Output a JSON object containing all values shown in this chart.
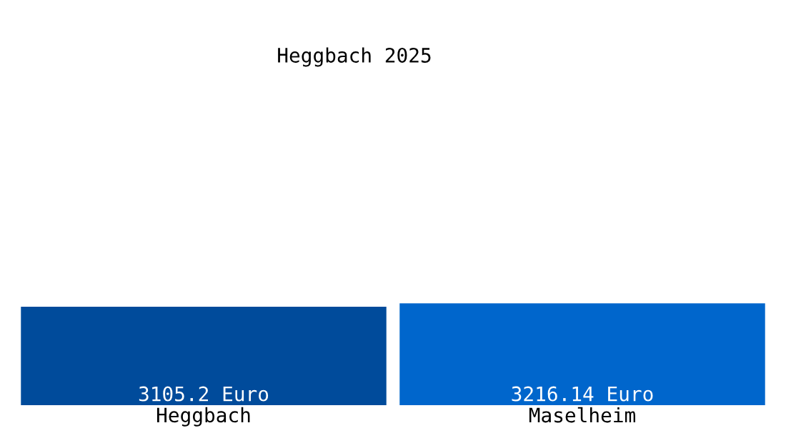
{
  "chart_data": {
    "type": "bar",
    "title": "Heggbach 2025",
    "categories": [
      "Heggbach",
      "Maselheim"
    ],
    "values": [
      3105.2,
      3216.14
    ],
    "colors": [
      "#004b9b",
      "#0066cc"
    ],
    "value_labels": [
      "3105.2 Euro",
      "3216.14 Euro"
    ],
    "grid": false,
    "legend": false
  }
}
